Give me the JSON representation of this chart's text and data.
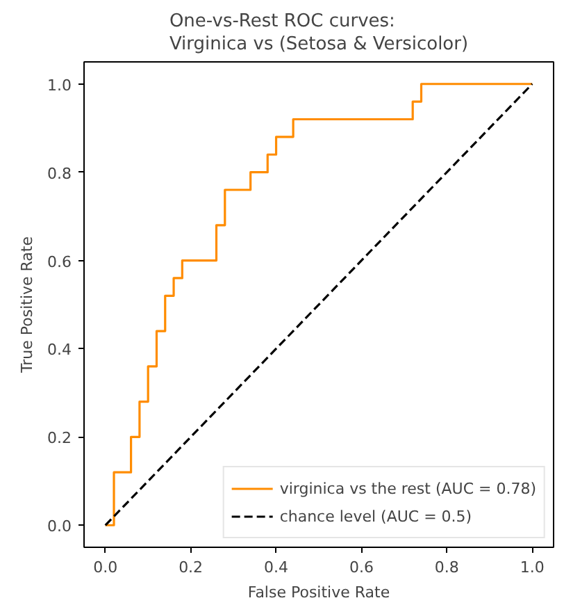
{
  "chart_data": {
    "type": "line",
    "title": "One-vs-Rest ROC curves:\nVirginica vs (Setosa & Versicolor)",
    "xlabel": "False Positive Rate",
    "ylabel": "True Positive Rate",
    "series": [
      {
        "name": "virginica vs the rest (AUC = 0.78)",
        "color": "#ff8c00",
        "line_style": "solid",
        "x": [
          0,
          0.02,
          0.02,
          0.06,
          0.06,
          0.08,
          0.08,
          0.1,
          0.1,
          0.12,
          0.12,
          0.14,
          0.14,
          0.16,
          0.16,
          0.18,
          0.18,
          0.26,
          0.26,
          0.28,
          0.28,
          0.34,
          0.34,
          0.38,
          0.38,
          0.4,
          0.4,
          0.44,
          0.44,
          0.72,
          0.72,
          0.74,
          0.74,
          1
        ],
        "values": [
          0,
          0,
          0.12,
          0.12,
          0.2,
          0.2,
          0.28,
          0.28,
          0.36,
          0.36,
          0.44,
          0.44,
          0.52,
          0.52,
          0.56,
          0.56,
          0.6,
          0.6,
          0.68,
          0.68,
          0.76,
          0.76,
          0.8,
          0.8,
          0.84,
          0.84,
          0.88,
          0.88,
          0.92,
          0.92,
          0.96,
          0.96,
          1,
          1
        ]
      },
      {
        "name": "chance level (AUC = 0.5)",
        "color": "#000000",
        "line_style": "dashed",
        "x": [
          0,
          1
        ],
        "values": [
          0,
          1
        ]
      }
    ],
    "xlim": [
      -0.05,
      1.05
    ],
    "ylim": [
      -0.05,
      1.05
    ],
    "xticks": [
      {
        "value": 0,
        "label": "0.0"
      },
      {
        "value": 0.2,
        "label": "0.2"
      },
      {
        "value": 0.4,
        "label": "0.4"
      },
      {
        "value": 0.6,
        "label": "0.6"
      },
      {
        "value": 0.8,
        "label": "0.8"
      },
      {
        "value": 1,
        "label": "1.0"
      }
    ],
    "yticks": [
      {
        "value": 0,
        "label": "0.0"
      },
      {
        "value": 0.2,
        "label": "0.2"
      },
      {
        "value": 0.4,
        "label": "0.4"
      },
      {
        "value": 0.6,
        "label": "0.6"
      },
      {
        "value": 0.8,
        "label": "0.8"
      },
      {
        "value": 1,
        "label": "1.0"
      }
    ],
    "grid": false,
    "legend": "bottom right"
  }
}
